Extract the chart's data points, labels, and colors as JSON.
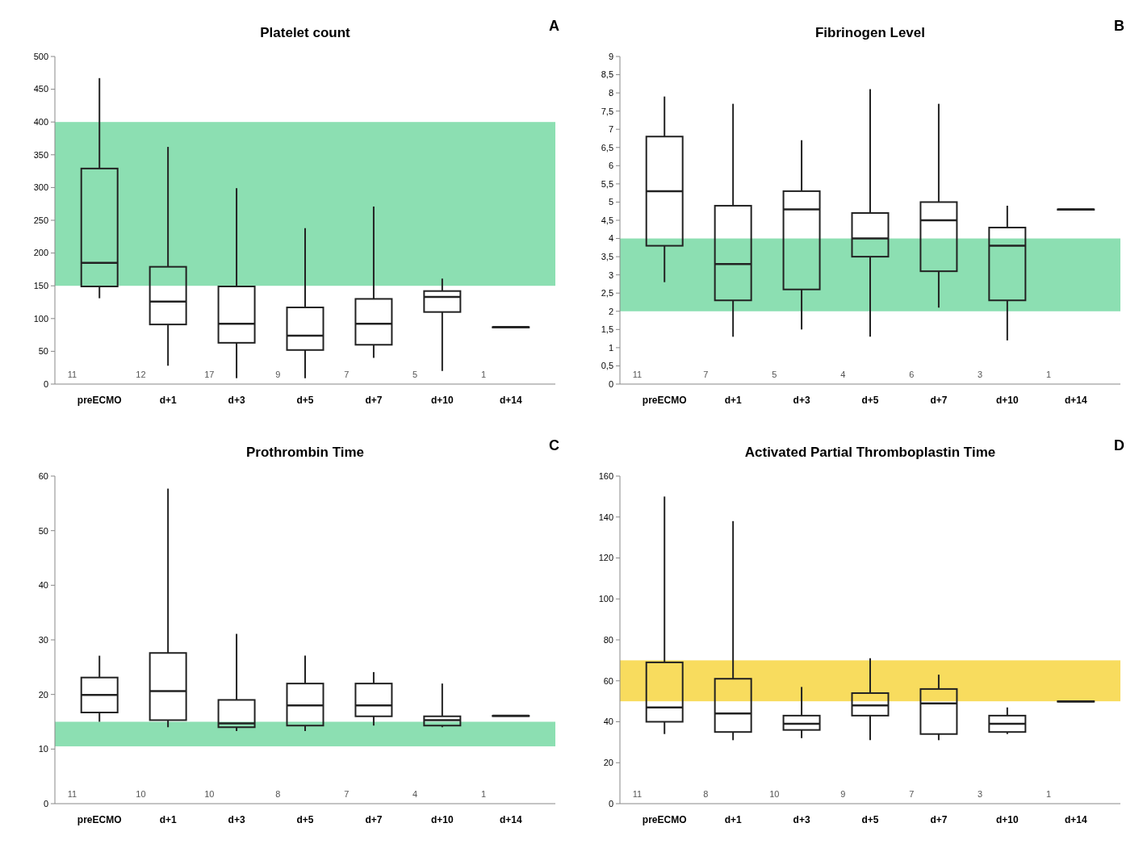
{
  "chart_data": [
    {
      "type": "box",
      "title": "Platelet count",
      "categories": [
        "preECMO",
        "d+1",
        "d+3",
        "d+5",
        "d+7",
        "d+10",
        "d+14"
      ],
      "boxes": [
        {
          "low": 131,
          "q1": 149,
          "median": 185,
          "q3": 329,
          "high": 467
        },
        {
          "low": 28,
          "q1": 91,
          "median": 126,
          "q3": 179,
          "high": 362
        },
        {
          "low": 9,
          "q1": 63,
          "median": 92,
          "q3": 149,
          "high": 299
        },
        {
          "low": 9,
          "q1": 52,
          "median": 74,
          "q3": 117,
          "high": 238
        },
        {
          "low": 40,
          "q1": 60,
          "median": 92,
          "q3": 130,
          "high": 271
        },
        {
          "low": 20,
          "q1": 110,
          "median": 133,
          "q3": 142,
          "high": 161
        },
        {
          "low": 87,
          "q1": 87,
          "median": 87,
          "q3": 87,
          "high": 87
        }
      ],
      "ylim": [
        0,
        500
      ],
      "yticks": [
        0,
        50,
        100,
        150,
        200,
        250,
        300,
        350,
        400,
        450,
        500
      ],
      "bands": [
        {
          "axis": "y",
          "from": 150,
          "to": 400,
          "color": "#7fdcaa"
        }
      ],
      "annotations": [
        "A",
        "11",
        "12",
        "17",
        "9",
        "7",
        "5",
        "1"
      ]
    },
    {
      "type": "box",
      "title": "Fibrinogen Level",
      "categories": [
        "preECMO",
        "d+1",
        "d+3",
        "d+5",
        "d+7",
        "d+10",
        "d+14"
      ],
      "boxes": [
        {
          "low": 2.8,
          "q1": 3.8,
          "median": 5.3,
          "q3": 6.8,
          "high": 7.9
        },
        {
          "low": 1.3,
          "q1": 2.3,
          "median": 3.3,
          "q3": 4.9,
          "high": 7.7
        },
        {
          "low": 1.5,
          "q1": 2.6,
          "median": 4.8,
          "q3": 5.3,
          "high": 6.7
        },
        {
          "low": 1.3,
          "q1": 3.5,
          "median": 4.0,
          "q3": 4.7,
          "high": 8.1
        },
        {
          "low": 2.1,
          "q1": 3.1,
          "median": 4.5,
          "q3": 5.0,
          "high": 7.7
        },
        {
          "low": 1.2,
          "q1": 2.3,
          "median": 3.8,
          "q3": 4.3,
          "high": 4.9
        },
        {
          "low": 4.8,
          "q1": 4.8,
          "median": 4.8,
          "q3": 4.8,
          "high": 4.8
        }
      ],
      "ylim": [
        0,
        9
      ],
      "yticks": [
        0,
        {
          "value": 0.5,
          "label": "0,5"
        },
        1,
        {
          "value": 1.5,
          "label": "1,5"
        },
        2,
        {
          "value": 2.5,
          "label": "2,5"
        },
        3,
        {
          "value": 3.5,
          "label": "3,5"
        },
        4,
        {
          "value": 4.5,
          "label": "4,5"
        },
        5,
        {
          "value": 5.5,
          "label": "5,5"
        },
        6,
        {
          "value": 6.5,
          "label": "6,5"
        },
        7,
        {
          "value": 7.5,
          "label": "7,5"
        },
        8,
        {
          "value": 8.5,
          "label": "8,5"
        },
        9
      ],
      "bands": [
        {
          "axis": "y",
          "from": 2,
          "to": 4,
          "color": "#7fdcaa"
        }
      ],
      "annotations": [
        "B",
        "11",
        "7",
        "5",
        "4",
        "6",
        "3",
        "1"
      ]
    },
    {
      "type": "box",
      "title": "Prothrombin Time",
      "categories": [
        "preECMO",
        "d+1",
        "d+3",
        "d+5",
        "d+7",
        "d+10",
        "d+14"
      ],
      "boxes": [
        {
          "low": 15.0,
          "q1": 16.7,
          "median": 19.9,
          "q3": 23.1,
          "high": 27.1
        },
        {
          "low": 14.0,
          "q1": 15.3,
          "median": 20.6,
          "q3": 27.6,
          "high": 57.7
        },
        {
          "low": 13.3,
          "q1": 14.0,
          "median": 14.7,
          "q3": 19.0,
          "high": 31.1
        },
        {
          "low": 13.3,
          "q1": 14.3,
          "median": 18.0,
          "q3": 22.0,
          "high": 27.1
        },
        {
          "low": 14.3,
          "q1": 16.0,
          "median": 18.0,
          "q3": 22.0,
          "high": 24.1
        },
        {
          "low": 14.0,
          "q1": 14.3,
          "median": 15.3,
          "q3": 16.0,
          "high": 22.0
        },
        {
          "low": 16.1,
          "q1": 16.1,
          "median": 16.1,
          "q3": 16.1,
          "high": 16.1
        }
      ],
      "ylim": [
        0,
        60
      ],
      "yticks": [
        0,
        10,
        20,
        30,
        40,
        50,
        60
      ],
      "bands": [
        {
          "axis": "y",
          "from": 10.5,
          "to": 15,
          "color": "#7fdcaa"
        }
      ],
      "annotations": [
        "C",
        "11",
        "10",
        "10",
        "8",
        "7",
        "4",
        "1"
      ]
    },
    {
      "type": "box",
      "title": "Activated Partial Thromboplastin Time",
      "categories": [
        "preECMO",
        "d+1",
        "d+3",
        "d+5",
        "d+7",
        "d+10",
        "d+14"
      ],
      "boxes": [
        {
          "low": 34,
          "q1": 40,
          "median": 47,
          "q3": 69,
          "high": 150
        },
        {
          "low": 31,
          "q1": 35,
          "median": 44,
          "q3": 61,
          "high": 138
        },
        {
          "low": 32,
          "q1": 36,
          "median": 39,
          "q3": 43,
          "high": 57
        },
        {
          "low": 31,
          "q1": 43,
          "median": 48,
          "q3": 54,
          "high": 71
        },
        {
          "low": 31,
          "q1": 34,
          "median": 49,
          "q3": 56,
          "high": 63
        },
        {
          "low": 34,
          "q1": 35,
          "median": 39,
          "q3": 43,
          "high": 47
        },
        {
          "low": 50,
          "q1": 50,
          "median": 50,
          "q3": 50,
          "high": 50
        }
      ],
      "ylim": [
        0,
        160
      ],
      "yticks": [
        0,
        20,
        40,
        60,
        80,
        100,
        120,
        140,
        160
      ],
      "bands": [
        {
          "axis": "y",
          "from": 50,
          "to": 70,
          "color": "#f7d84c"
        }
      ],
      "annotations": [
        "D",
        "11",
        "8",
        "10",
        "9",
        "7",
        "3",
        "1"
      ]
    }
  ]
}
